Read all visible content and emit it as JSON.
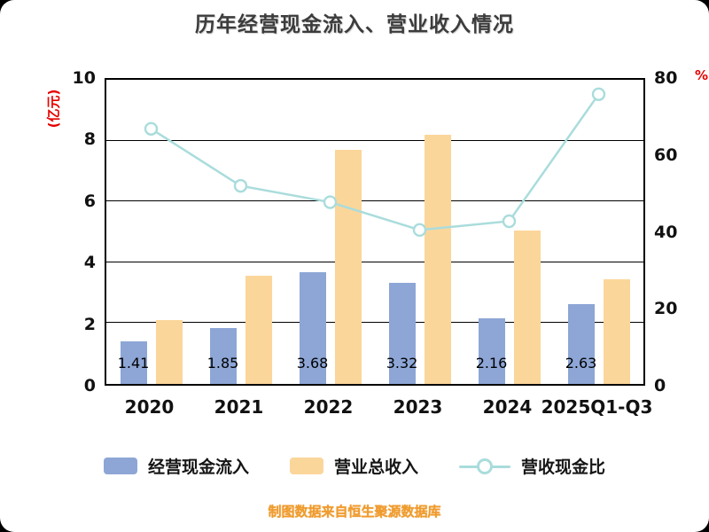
{
  "title": "历年经营现金流入、营业收入情况",
  "left_axis_unit": "(亿元)",
  "right_axis_unit": "%",
  "caption": "制图数据来自恒生聚源数据库",
  "colors": {
    "cash_bar": "#8da6d6",
    "revenue_bar": "#fbd69a",
    "ratio_line": "#aadcdc",
    "axis_unit_red": "#e60000",
    "caption_orange": "#ef9b2e"
  },
  "legend": [
    {
      "label": "经营现金流入",
      "color": "#8da6d6"
    },
    {
      "label": "营业总收入",
      "color": "#fbd69a"
    },
    {
      "label": "营收现金比",
      "color": "#aadcdc"
    }
  ],
  "chart_data": {
    "type": "bar",
    "categories": [
      "2020",
      "2021",
      "2022",
      "2023",
      "2024",
      "2025Q1-Q3"
    ],
    "series": [
      {
        "name": "经营现金流入",
        "type": "bar",
        "axis": "left",
        "values": [
          1.41,
          1.85,
          3.68,
          3.32,
          2.16,
          2.63
        ],
        "labels": [
          "1.41",
          "1.85",
          "3.68",
          "3.32",
          "2.16",
          "2.63"
        ]
      },
      {
        "name": "营业总收入",
        "type": "bar",
        "axis": "left",
        "values": [
          2.1,
          3.55,
          7.7,
          8.2,
          5.05,
          3.45
        ]
      },
      {
        "name": "营收现金比",
        "type": "line",
        "axis": "right",
        "values": [
          67.1,
          52.1,
          47.8,
          40.5,
          42.8,
          76.2
        ]
      }
    ],
    "left_axis": {
      "min": 0,
      "max": 10,
      "ticks": [
        0,
        2,
        4,
        6,
        8,
        10
      ]
    },
    "right_axis": {
      "min": 0,
      "max": 80,
      "ticks": [
        0,
        20,
        40,
        60,
        80
      ]
    },
    "grid": true,
    "legend_position": "bottom"
  }
}
